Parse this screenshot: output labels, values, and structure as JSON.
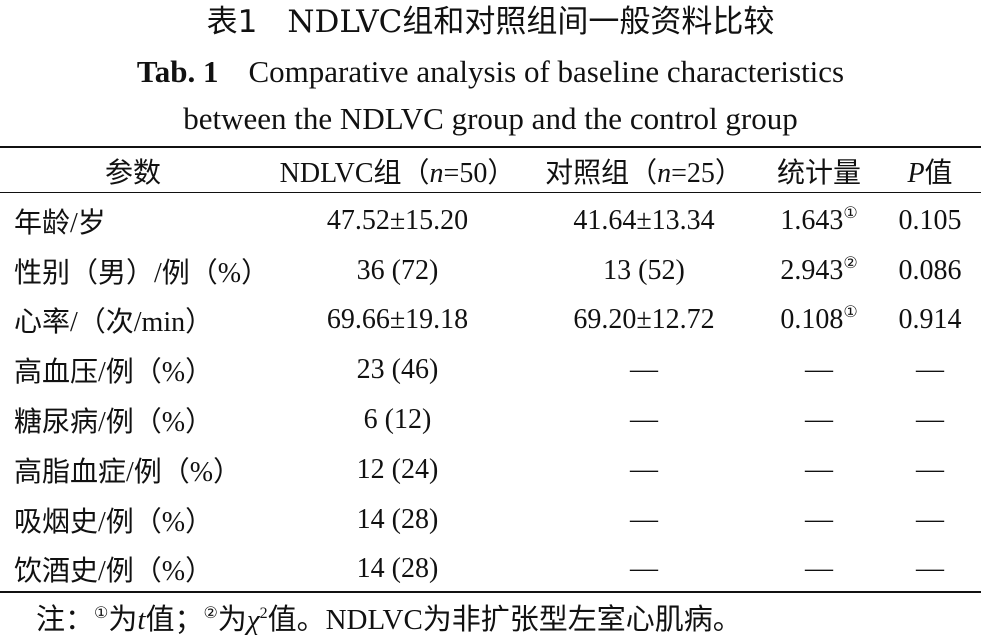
{
  "caption": {
    "cn_label": "表1",
    "cn_title": "NDLVC组和对照组间一般资料比较",
    "en_label": "Tab. 1",
    "en_title_line1": "Comparative analysis of baseline characteristics",
    "en_title_line2": "between the NDLVC group and the control group"
  },
  "table": {
    "headers": [
      "参数",
      "NDLVC组（n=50）",
      "对照组（n=25）",
      "统计量",
      "P值"
    ],
    "rows": [
      {
        "param": "年龄/岁",
        "ndlvc": "47.52±15.20",
        "control": "41.64±13.34",
        "stat": "1.643",
        "stat_mark": "①",
        "p": "0.105"
      },
      {
        "param": "性别（男）/例（%）",
        "ndlvc": "36 (72)",
        "control": "13 (52)",
        "stat": "2.943",
        "stat_mark": "②",
        "p": "0.086"
      },
      {
        "param": "心率/（次/min）",
        "ndlvc": "69.66±19.18",
        "control": "69.20±12.72",
        "stat": "0.108",
        "stat_mark": "①",
        "p": "0.914"
      },
      {
        "param": "高血压/例（%）",
        "ndlvc": "23 (46)",
        "control": "—",
        "stat": "—",
        "stat_mark": "",
        "p": "—"
      },
      {
        "param": "糖尿病/例（%）",
        "ndlvc": "6 (12)",
        "control": "—",
        "stat": "—",
        "stat_mark": "",
        "p": "—"
      },
      {
        "param": "高脂血症/例（%）",
        "ndlvc": "12 (24)",
        "control": "—",
        "stat": "—",
        "stat_mark": "",
        "p": "—"
      },
      {
        "param": "吸烟史/例（%）",
        "ndlvc": "14 (28)",
        "control": "—",
        "stat": "—",
        "stat_mark": "",
        "p": "—"
      },
      {
        "param": "饮酒史/例（%）",
        "ndlvc": "14 (28)",
        "control": "—",
        "stat": "—",
        "stat_mark": "",
        "p": "—"
      }
    ]
  },
  "note": {
    "prefix": "注：",
    "mark1": "①",
    "text1": "为",
    "var1": "t",
    "text2": "值；",
    "mark2": "②",
    "text3": "为",
    "var2": "χ",
    "sup2": "2",
    "text4": "值。NDLVC为非扩张型左室心肌病。"
  }
}
